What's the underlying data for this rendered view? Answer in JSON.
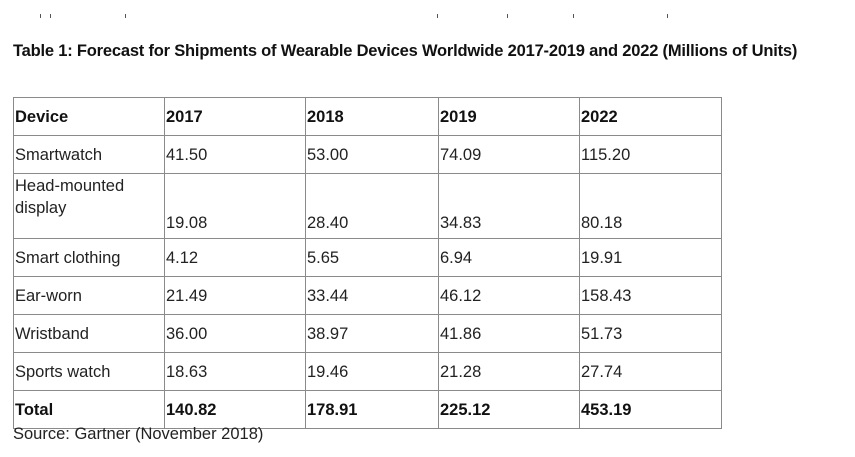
{
  "title": "Table 1: Forecast for Shipments of Wearable Devices Worldwide 2017-2019 and 2022 (Millions of Units)",
  "table": {
    "headers": [
      "Device",
      "2017",
      "2018",
      "2019",
      "2022"
    ],
    "rows": [
      [
        "Smartwatch",
        "41.50",
        "53.00",
        "74.09",
        "115.20"
      ],
      [
        "Head-mounted display",
        "19.08",
        "28.40",
        "34.83",
        "80.18"
      ],
      [
        "Smart clothing",
        "4.12",
        "5.65",
        "6.94",
        "19.91"
      ],
      [
        "Ear-worn",
        "21.49",
        "33.44",
        "46.12",
        "158.43"
      ],
      [
        "Wristband",
        "36.00",
        "38.97",
        "41.86",
        "51.73"
      ],
      [
        "Sports watch",
        "18.63",
        "19.46",
        "21.28",
        "27.74"
      ]
    ],
    "total": [
      "Total",
      "140.82",
      "178.91",
      "225.12",
      "453.19"
    ]
  },
  "source": "Source: Gartner (November 2018)"
}
